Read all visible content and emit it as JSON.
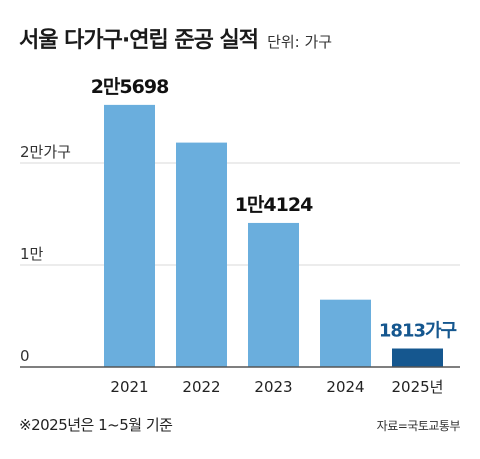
{
  "header": {
    "title": "서울 다가구·연립 준공 실적",
    "unit": "단위: 가구"
  },
  "footnote": "※2025년은 1~5월 기준",
  "source": "자료=국토교통부",
  "colors": {
    "bar": "#6aaedd",
    "bar_highlight": "#15578f",
    "highlight_label": "#15578f",
    "grid": "#d9d9d9",
    "axis": "#555555"
  },
  "chart_data": {
    "type": "bar",
    "title": "서울 다가구·연립 준공 실적",
    "categories": [
      "2021",
      "2022",
      "2023",
      "2024",
      "2025년"
    ],
    "values": [
      25698,
      22000,
      14124,
      6600,
      1813
    ],
    "data_labels": [
      "2만5698",
      "",
      "1만4124",
      "",
      "1813가구"
    ],
    "highlight_index": 4,
    "ylim": [
      0,
      26000
    ],
    "yticks": [
      {
        "value": 0,
        "label": "0"
      },
      {
        "value": 10000,
        "label": "1만"
      },
      {
        "value": 20000,
        "label": "2만가구"
      }
    ],
    "grid": true,
    "legend": "none"
  }
}
